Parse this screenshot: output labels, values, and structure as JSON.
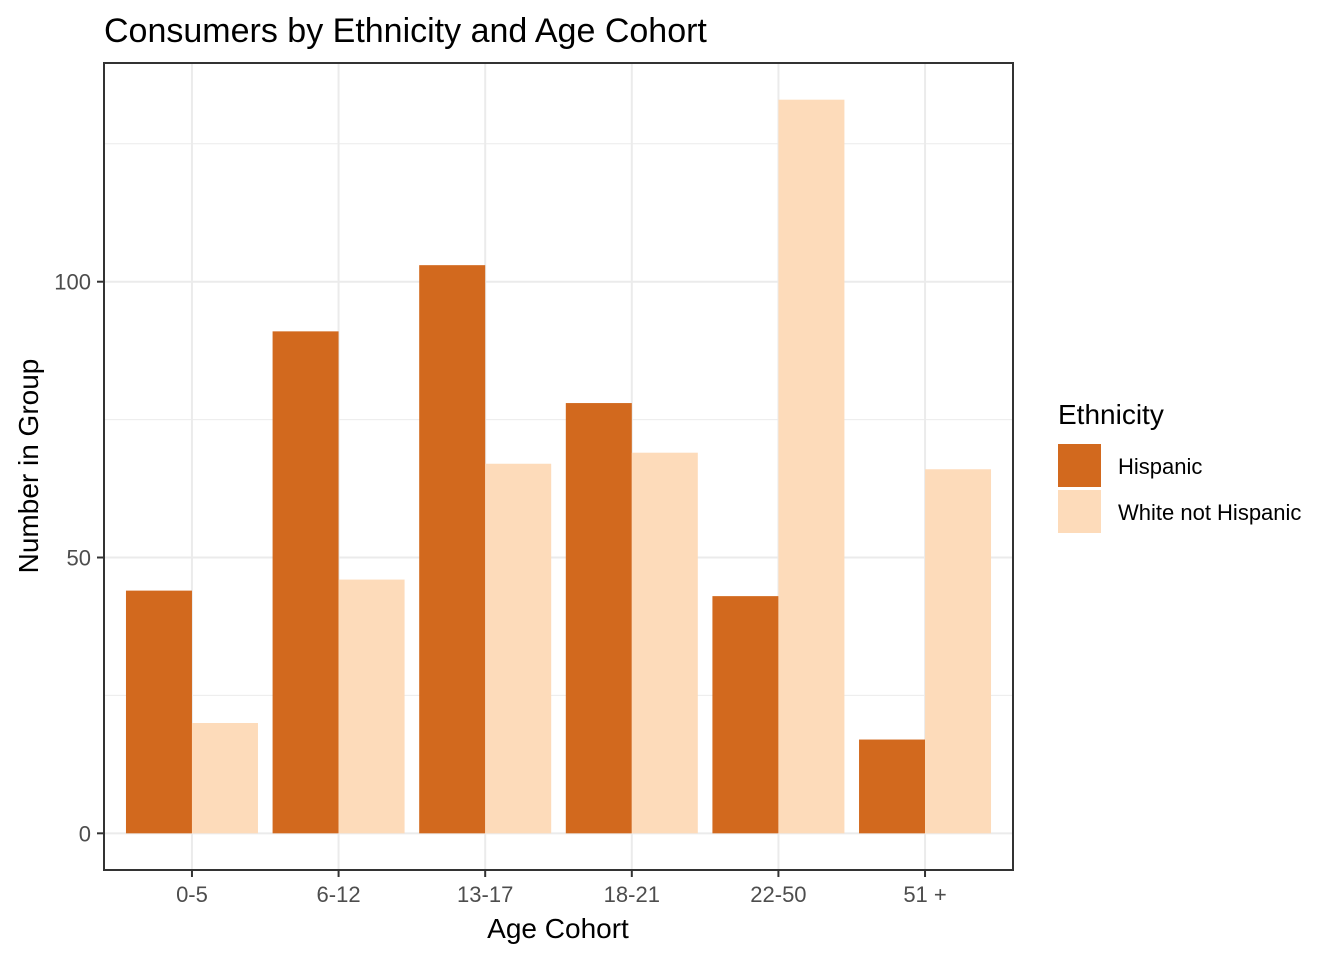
{
  "chart_data": {
    "type": "bar",
    "title": "Consumers by Ethnicity and Age Cohort",
    "xlabel": "Age Cohort",
    "ylabel": "Number in Group",
    "categories": [
      "0-5",
      "6-12",
      "13-17",
      "18-21",
      "22-50",
      "51 +"
    ],
    "series": [
      {
        "name": "Hispanic",
        "color": "#D2691E",
        "values": [
          44,
          91,
          103,
          78,
          43,
          17
        ]
      },
      {
        "name": "White not Hispanic",
        "color": "#FDDBBA",
        "values": [
          20,
          46,
          67,
          69,
          133,
          66
        ]
      }
    ],
    "yticks": [
      0,
      50,
      100
    ],
    "ylim": [
      -6.65,
      139.65
    ],
    "grid": true,
    "legend": {
      "title": "Ethnicity",
      "placement": "right"
    }
  }
}
